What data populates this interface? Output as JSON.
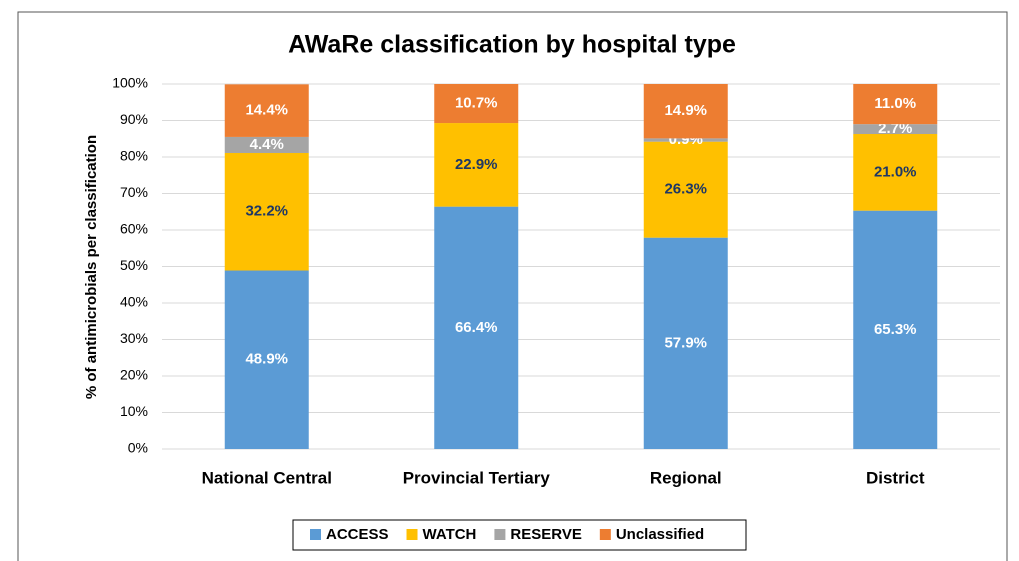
{
  "chart_data": {
    "type": "stacked_bar",
    "title": "AWaRe classification by hospital type",
    "y_label": "% of antimicrobials per classification",
    "categories": [
      "National Central",
      "Provincial Tertiary",
      "Regional",
      "District"
    ],
    "series": [
      {
        "name": "ACCESS",
        "color": "#5b9bd5",
        "label_color": "#ffffff",
        "values": [
          48.9,
          66.4,
          57.9,
          65.3
        ],
        "value_labels": [
          "48.9%",
          "66.4%",
          "57.9%",
          "65.3%"
        ]
      },
      {
        "name": "WATCH",
        "color": "#ffc000",
        "label_color": "#1f3864",
        "values": [
          32.2,
          22.9,
          26.3,
          21.0
        ],
        "value_labels": [
          "32.2%",
          "22.9%",
          "26.3%",
          "21.0%"
        ]
      },
      {
        "name": "RESERVE",
        "color": "#a5a5a5",
        "label_color": "#ffffff",
        "values": [
          4.4,
          0,
          0.9,
          2.7
        ],
        "value_labels": [
          "4.4%",
          null,
          "0.9%",
          "2.7%"
        ]
      },
      {
        "name": "Unclassified",
        "color": "#ed7d31",
        "label_color": "#ffffff",
        "values": [
          14.4,
          10.7,
          14.9,
          11.0
        ],
        "value_labels": [
          "14.4%",
          "10.7%",
          "14.9%",
          "11.0%"
        ]
      }
    ],
    "ylim": [
      0,
      100
    ],
    "yticks": [
      {
        "value": 0,
        "label": "0%"
      },
      {
        "value": 10,
        "label": "10%"
      },
      {
        "value": 20,
        "label": "20%"
      },
      {
        "value": 30,
        "label": "30%"
      },
      {
        "value": 40,
        "label": "40%"
      },
      {
        "value": 50,
        "label": "50%"
      },
      {
        "value": 60,
        "label": "60%"
      },
      {
        "value": 70,
        "label": "70%"
      },
      {
        "value": 80,
        "label": "80%"
      },
      {
        "value": 90,
        "label": "90%"
      },
      {
        "value": 100,
        "label": "100%"
      }
    ],
    "grid": true,
    "legend": "bottom"
  }
}
